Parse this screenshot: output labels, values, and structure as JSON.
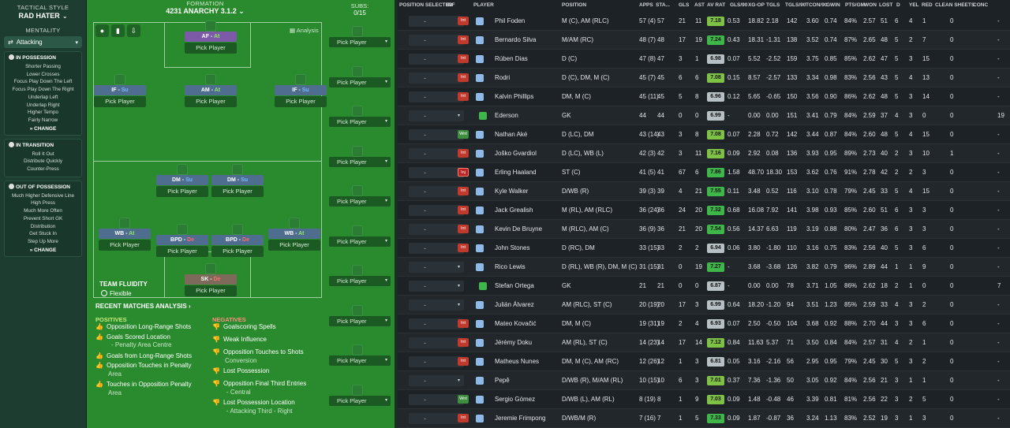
{
  "tactics": {
    "style_label": "TACTICAL STYLE",
    "style": "RAD HATER",
    "mentality_label": "MENTALITY",
    "mentality": "Attacking",
    "in_possession": {
      "title": "IN POSSESSION",
      "items": [
        "Shorter Passing",
        "Lower Crosses",
        "Focus Play Down The Left",
        "Focus Play Down The Right",
        "Underlap Left",
        "Underlap Right",
        "Higher Tempo",
        "Fairly Narrow"
      ]
    },
    "in_transition": {
      "title": "IN TRANSITION",
      "items": [
        "Roll It Out",
        "Distribute Quickly",
        "Counter-Press"
      ]
    },
    "out_of_possession": {
      "title": "OUT OF POSSESSION",
      "items": [
        "Much Higher Defensive Line",
        "High Press",
        "Much More Often",
        "Prevent Short GK",
        "Distribution",
        "Get Stuck In",
        "Step Up More"
      ]
    },
    "change_label": "CHANGE"
  },
  "formation": {
    "label": "FORMATION",
    "name": "4231 ANARCHY 3.1.2",
    "analysis": "Analysis",
    "pick": "Pick Player",
    "positions": [
      {
        "pos": "AF",
        "duty": "At",
        "dc": "dt"
      },
      {
        "pos": "IF",
        "duty": "Su",
        "dc": "su"
      },
      {
        "pos": "AM",
        "duty": "At",
        "dc": "dt"
      },
      {
        "pos": "IF",
        "duty": "Su",
        "dc": "su"
      },
      {
        "pos": "DM",
        "duty": "Su",
        "dc": "su"
      },
      {
        "pos": "DM",
        "duty": "Su",
        "dc": "su"
      },
      {
        "pos": "WB",
        "duty": "At",
        "dc": "dt"
      },
      {
        "pos": "BPD",
        "duty": "De",
        "dc": "df"
      },
      {
        "pos": "BPD",
        "duty": "De",
        "dc": "df"
      },
      {
        "pos": "WB",
        "duty": "At",
        "dc": "dt"
      },
      {
        "pos": "SK",
        "duty": "De",
        "dc": "df"
      }
    ],
    "fluidity_label": "TEAM FLUIDITY",
    "fluidity": "Flexible"
  },
  "subs": {
    "label": "SUBS:",
    "count": "0/15",
    "pick": "Pick Player"
  },
  "analysis": {
    "title": "RECENT MATCHES ANALYSIS",
    "positives_label": "POSITIVES",
    "negatives_label": "NEGATIVES",
    "positives": [
      {
        "text": "Opposition Long-Range Shots",
        "note": ""
      },
      {
        "text": "Goals Scored Location",
        "note": "- Penalty Area Centre"
      },
      {
        "text": "Goals from Long-Range Shots",
        "note": ""
      },
      {
        "text": "Opposition Touches in Penalty",
        "note": "Area"
      },
      {
        "text": "Touches in Opposition Penalty",
        "note": "Area"
      }
    ],
    "negatives": [
      {
        "text": "Goalscoring Spells",
        "note": ""
      },
      {
        "text": "Weak Influence",
        "note": ""
      },
      {
        "text": "Opposition Touches to Shots",
        "note": "Conversion"
      },
      {
        "text": "Lost Possession",
        "note": ""
      },
      {
        "text": "Opposition Final Third Entries",
        "note": "- Central"
      },
      {
        "text": "Lost Possession Location",
        "note": "- Attacking Third - Right"
      }
    ]
  },
  "table": {
    "headers": [
      "POSITION SELECTED",
      "INF",
      "PLAYER",
      "POSITION",
      "APPS",
      "STA...",
      "GLS",
      "AST",
      "AV RAT",
      "GLS/90",
      "XG-OP",
      "TGLS",
      "TGLS/90",
      "TCON/90",
      "GWIN",
      "PTS/GM",
      "WON",
      "LOST",
      "D",
      "YEL",
      "RED",
      "CLEAN SHEETS",
      "CONC"
    ],
    "rows": [
      {
        "inf": "Int",
        "name": "Phil Foden",
        "pos": "M (C), AM (RLC)",
        "apps": "57 (4)",
        "sta": "57",
        "gls": "21",
        "ast": "11",
        "av": "7.18",
        "g90": "0.53",
        "xg": "18.82",
        "tgls": "2.18",
        "t90": "142",
        "tc90": "3.60",
        "gwin": "0.74",
        "pts": "84%",
        "won": "2.57",
        "lost": "51",
        "d": "6",
        "yel": "4",
        "red": "1",
        "cs": "0",
        "conc": "-"
      },
      {
        "inf": "Int",
        "name": "Bernardo Silva",
        "pos": "M/AM (RC)",
        "apps": "48 (7)",
        "sta": "48",
        "gls": "17",
        "ast": "19",
        "av": "7.24",
        "g90": "0.43",
        "xg": "18.31",
        "tgls": "-1.31",
        "t90": "138",
        "tc90": "3.52",
        "gwin": "0.74",
        "pts": "87%",
        "won": "2.65",
        "lost": "48",
        "d": "5",
        "yel": "2",
        "red": "7",
        "cs": "0",
        "conc": "-"
      },
      {
        "inf": "Int",
        "name": "Rúben Dias",
        "pos": "D (C)",
        "apps": "47 (8)",
        "sta": "47",
        "gls": "3",
        "ast": "1",
        "av": "6.98",
        "g90": "0.07",
        "xg": "5.52",
        "tgls": "-2.52",
        "t90": "159",
        "tc90": "3.75",
        "gwin": "0.85",
        "pts": "85%",
        "won": "2.62",
        "lost": "47",
        "d": "5",
        "yel": "3",
        "red": "15",
        "cs": "0",
        "conc": "-"
      },
      {
        "inf": "Int",
        "name": "Rodri",
        "pos": "D (C), DM, M (C)",
        "apps": "45 (7)",
        "sta": "45",
        "gls": "6",
        "ast": "6",
        "av": "7.08",
        "g90": "0.15",
        "xg": "8.57",
        "tgls": "-2.57",
        "t90": "133",
        "tc90": "3.34",
        "gwin": "0.98",
        "pts": "83%",
        "won": "2.56",
        "lost": "43",
        "d": "5",
        "yel": "4",
        "red": "13",
        "cs": "0",
        "conc": "-"
      },
      {
        "inf": "Int",
        "name": "Kalvin Phillips",
        "pos": "DM, M (C)",
        "apps": "45 (11)",
        "sta": "45",
        "gls": "5",
        "ast": "8",
        "av": "6.96",
        "g90": "0.12",
        "xg": "5.65",
        "tgls": "-0.65",
        "t90": "150",
        "tc90": "3.56",
        "gwin": "0.90",
        "pts": "86%",
        "won": "2.62",
        "lost": "48",
        "d": "5",
        "yel": "3",
        "red": "14",
        "cs": "0",
        "conc": "-"
      },
      {
        "inf": "",
        "name": "Ederson",
        "pos": "GK",
        "apps": "44",
        "sta": "44",
        "gls": "0",
        "ast": "0",
        "av": "6.99",
        "g90": "-",
        "xg": "0.00",
        "tgls": "0.00",
        "t90": "151",
        "tc90": "3.41",
        "gwin": "0.79",
        "pts": "84%",
        "won": "2.59",
        "lost": "37",
        "d": "4",
        "yel": "3",
        "red": "0",
        "cs": "0",
        "conc": "19"
      },
      {
        "inf": "Wnt",
        "name": "Nathan Aké",
        "pos": "D (LC), DM",
        "apps": "43 (14)",
        "sta": "43",
        "gls": "3",
        "ast": "8",
        "av": "7.08",
        "g90": "0.07",
        "xg": "2.28",
        "tgls": "0.72",
        "t90": "142",
        "tc90": "3.44",
        "gwin": "0.87",
        "pts": "84%",
        "won": "2.60",
        "lost": "48",
        "d": "5",
        "yel": "4",
        "red": "15",
        "cs": "0",
        "conc": "-"
      },
      {
        "inf": "Int",
        "name": "Joško Gvardiol",
        "pos": "D (LC), WB (L)",
        "apps": "42 (3)",
        "sta": "42",
        "gls": "3",
        "ast": "11",
        "av": "7.16",
        "g90": "0.09",
        "xg": "2.92",
        "tgls": "0.08",
        "t90": "136",
        "tc90": "3.93",
        "gwin": "0.95",
        "pts": "89%",
        "won": "2.73",
        "lost": "40",
        "d": "2",
        "yel": "3",
        "red": "10",
        "cs": "1",
        "conc": "-"
      },
      {
        "inf": "Inj",
        "name": "Erling Haaland",
        "pos": "ST (C)",
        "apps": "41 (5)",
        "sta": "41",
        "gls": "67",
        "ast": "6",
        "av": "7.86",
        "g90": "1.58",
        "xg": "48.70",
        "tgls": "18.30",
        "t90": "153",
        "tc90": "3.62",
        "gwin": "0.76",
        "pts": "91%",
        "won": "2.78",
        "lost": "42",
        "d": "2",
        "yel": "2",
        "red": "3",
        "cs": "0",
        "conc": "-"
      },
      {
        "inf": "Int",
        "name": "Kyle Walker",
        "pos": "D/WB (R)",
        "apps": "39 (3)",
        "sta": "39",
        "gls": "4",
        "ast": "21",
        "av": "7.55",
        "g90": "0.11",
        "xg": "3.48",
        "tgls": "0.52",
        "t90": "116",
        "tc90": "3.10",
        "gwin": "0.78",
        "pts": "79%",
        "won": "2.45",
        "lost": "33",
        "d": "5",
        "yel": "4",
        "red": "15",
        "cs": "0",
        "conc": "-"
      },
      {
        "inf": "Int",
        "name": "Jack Grealish",
        "pos": "M (RL), AM (RLC)",
        "apps": "36 (24)",
        "sta": "36",
        "gls": "24",
        "ast": "20",
        "av": "7.32",
        "g90": "0.68",
        "xg": "16.08",
        "tgls": "7.92",
        "t90": "141",
        "tc90": "3.98",
        "gwin": "0.93",
        "pts": "85%",
        "won": "2.60",
        "lost": "51",
        "d": "6",
        "yel": "3",
        "red": "3",
        "cs": "0",
        "conc": "-"
      },
      {
        "inf": "Int",
        "name": "Kevin De Bruyne",
        "pos": "M (RLC), AM (C)",
        "apps": "36 (9)",
        "sta": "36",
        "gls": "21",
        "ast": "20",
        "av": "7.54",
        "g90": "0.56",
        "xg": "14.37",
        "tgls": "6.63",
        "t90": "119",
        "tc90": "3.19",
        "gwin": "0.88",
        "pts": "80%",
        "won": "2.47",
        "lost": "36",
        "d": "6",
        "yel": "3",
        "red": "3",
        "cs": "0",
        "conc": "-"
      },
      {
        "inf": "Int",
        "name": "John Stones",
        "pos": "D (RC), DM",
        "apps": "33 (15)",
        "sta": "33",
        "gls": "2",
        "ast": "2",
        "av": "6.94",
        "g90": "0.06",
        "xg": "3.80",
        "tgls": "-1.80",
        "t90": "110",
        "tc90": "3.16",
        "gwin": "0.75",
        "pts": "83%",
        "won": "2.56",
        "lost": "40",
        "d": "5",
        "yel": "3",
        "red": "6",
        "cs": "0",
        "conc": "-"
      },
      {
        "inf": "",
        "name": "Rico Lewis",
        "pos": "D (RL), WB (R), DM, M (C)",
        "apps": "31 (15)",
        "sta": "31",
        "gls": "0",
        "ast": "19",
        "av": "7.27",
        "g90": "-",
        "xg": "3.68",
        "tgls": "-3.68",
        "t90": "126",
        "tc90": "3.82",
        "gwin": "0.79",
        "pts": "96%",
        "won": "2.89",
        "lost": "44",
        "d": "1",
        "yel": "1",
        "red": "9",
        "cs": "0",
        "conc": "-"
      },
      {
        "inf": "",
        "name": "Stefan Ortega",
        "pos": "GK",
        "apps": "21",
        "sta": "21",
        "gls": "0",
        "ast": "0",
        "av": "6.87",
        "g90": "-",
        "xg": "0.00",
        "tgls": "0.00",
        "t90": "78",
        "tc90": "3.71",
        "gwin": "1.05",
        "pts": "86%",
        "won": "2.62",
        "lost": "18",
        "d": "2",
        "yel": "1",
        "red": "0",
        "cs": "0",
        "conc": "7"
      },
      {
        "inf": "",
        "name": "Julián Álvarez",
        "pos": "AM (RLC), ST (C)",
        "apps": "20 (19)",
        "sta": "20",
        "gls": "17",
        "ast": "3",
        "av": "6.99",
        "g90": "0.64",
        "xg": "18.20",
        "tgls": "-1.20",
        "t90": "94",
        "tc90": "3.51",
        "gwin": "1.23",
        "pts": "85%",
        "won": "2.59",
        "lost": "33",
        "d": "4",
        "yel": "3",
        "red": "2",
        "cs": "0",
        "conc": "-"
      },
      {
        "inf": "Int",
        "name": "Mateo Kovačić",
        "pos": "DM, M (C)",
        "apps": "19 (31)",
        "sta": "19",
        "gls": "2",
        "ast": "4",
        "av": "6.93",
        "g90": "0.07",
        "xg": "2.50",
        "tgls": "-0.50",
        "t90": "104",
        "tc90": "3.68",
        "gwin": "0.92",
        "pts": "88%",
        "won": "2.70",
        "lost": "44",
        "d": "3",
        "yel": "3",
        "red": "6",
        "cs": "0",
        "conc": "-"
      },
      {
        "inf": "Int",
        "name": "Jérémy Doku",
        "pos": "AM (RL), ST (C)",
        "apps": "14 (23)",
        "sta": "14",
        "gls": "17",
        "ast": "14",
        "av": "7.12",
        "g90": "0.84",
        "xg": "11.63",
        "tgls": "5.37",
        "t90": "71",
        "tc90": "3.50",
        "gwin": "0.84",
        "pts": "84%",
        "won": "2.57",
        "lost": "31",
        "d": "4",
        "yel": "2",
        "red": "1",
        "cs": "0",
        "conc": "-"
      },
      {
        "inf": "Int",
        "name": "Matheus Nunes",
        "pos": "DM, M (C), AM (RC)",
        "apps": "12 (26)",
        "sta": "12",
        "gls": "1",
        "ast": "3",
        "av": "6.81",
        "g90": "0.05",
        "xg": "3.16",
        "tgls": "-2.16",
        "t90": "56",
        "tc90": "2.95",
        "gwin": "0.95",
        "pts": "79%",
        "won": "2.45",
        "lost": "30",
        "d": "5",
        "yel": "3",
        "red": "2",
        "cs": "0",
        "conc": "-"
      },
      {
        "inf": "",
        "name": "Pepê",
        "pos": "D/WB (R), M/AM (RL)",
        "apps": "10 (15)",
        "sta": "10",
        "gls": "6",
        "ast": "3",
        "av": "7.01",
        "g90": "0.37",
        "xg": "7.36",
        "tgls": "-1.36",
        "t90": "50",
        "tc90": "3.05",
        "gwin": "0.92",
        "pts": "84%",
        "won": "2.56",
        "lost": "21",
        "d": "3",
        "yel": "1",
        "red": "1",
        "cs": "0",
        "conc": "-"
      },
      {
        "inf": "Wnt",
        "name": "Sergio Gómez",
        "pos": "D/WB (L), AM (RL)",
        "apps": "8 (19)",
        "sta": "8",
        "gls": "1",
        "ast": "9",
        "av": "7.03",
        "g90": "0.09",
        "xg": "1.48",
        "tgls": "-0.48",
        "t90": "46",
        "tc90": "3.39",
        "gwin": "0.81",
        "pts": "81%",
        "won": "2.56",
        "lost": "22",
        "d": "3",
        "yel": "2",
        "red": "5",
        "cs": "0",
        "conc": "-"
      },
      {
        "inf": "Int",
        "name": "Jeremie Frimpong",
        "pos": "D/WB/M (R)",
        "apps": "7 (16)",
        "sta": "7",
        "gls": "1",
        "ast": "5",
        "av": "7.33",
        "g90": "0.09",
        "xg": "1.87",
        "tgls": "-0.87",
        "t90": "36",
        "tc90": "3.24",
        "gwin": "1.13",
        "pts": "83%",
        "won": "2.52",
        "lost": "19",
        "d": "3",
        "yel": "1",
        "red": "3",
        "cs": "0",
        "conc": "-"
      }
    ]
  },
  "colors": {
    "rating_high": "#3fb64a",
    "rating_mid": "#7fc144",
    "rating_low": "#b7c0c4"
  }
}
